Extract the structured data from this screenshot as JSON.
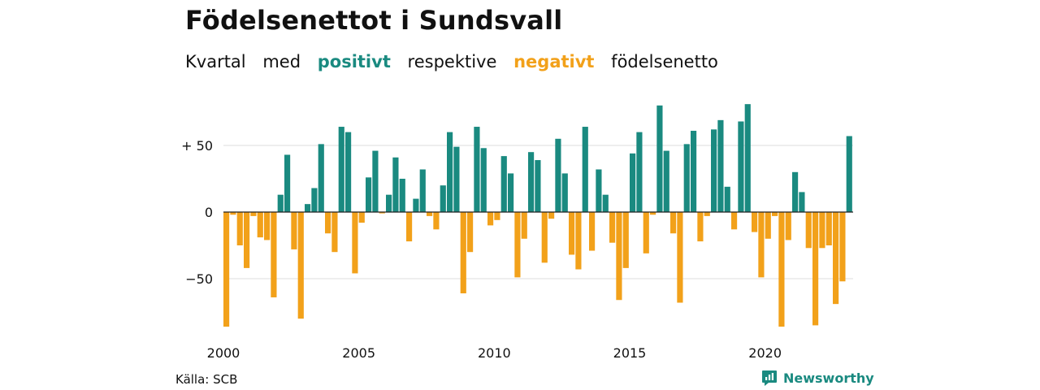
{
  "title": "Födelsenettot i Sundsvall",
  "subtitle": {
    "w1": "Kvartal",
    "w2": "med",
    "positive": "positivt",
    "w3": "respektive",
    "negative": "negativt",
    "w4": "födelsenetto"
  },
  "colors": {
    "positive": "#1a8a80",
    "negative": "#f2a11a",
    "text": "#111111",
    "grid": "#dddddd",
    "baseline": "#222222"
  },
  "source": "Källa: SCB",
  "brand": {
    "name": "Newsworthy",
    "icon": "newsworthy-logo-icon"
  },
  "chart_data": {
    "type": "bar",
    "x_unit": "quarter",
    "x_start": "2000 Q1",
    "xticks": [
      {
        "label": "2000",
        "year": 2000
      },
      {
        "label": "2005",
        "year": 2005
      },
      {
        "label": "2010",
        "year": 2010
      },
      {
        "label": "2015",
        "year": 2015
      },
      {
        "label": "2020",
        "year": 2020
      }
    ],
    "yticks": [
      {
        "label": "+ 50",
        "value": 50
      },
      {
        "label": "0",
        "value": 0
      },
      {
        "label": "−50",
        "value": -50
      }
    ],
    "ylim": [
      -88,
      82
    ],
    "grid": true,
    "values": [
      -86,
      -2,
      -25,
      -42,
      -3,
      -19,
      -21,
      -64,
      13,
      43,
      -28,
      -80,
      6,
      18,
      51,
      -16,
      -30,
      64,
      60,
      -46,
      -8,
      26,
      46,
      -1,
      13,
      41,
      25,
      -22,
      10,
      32,
      -3,
      -13,
      20,
      60,
      49,
      -61,
      -30,
      64,
      48,
      -10,
      -6,
      42,
      29,
      -49,
      -20,
      45,
      39,
      -38,
      -5,
      55,
      29,
      -32,
      -43,
      64,
      -29,
      32,
      13,
      -23,
      -66,
      -42,
      44,
      60,
      -31,
      -2,
      80,
      46,
      -16,
      -68,
      51,
      61,
      -22,
      -3,
      62,
      69,
      19,
      -13,
      68,
      81,
      -15,
      -49,
      -20,
      -3,
      -86,
      -21,
      30,
      15,
      -27,
      -85,
      -27,
      -25,
      -69,
      -52,
      57
    ]
  }
}
